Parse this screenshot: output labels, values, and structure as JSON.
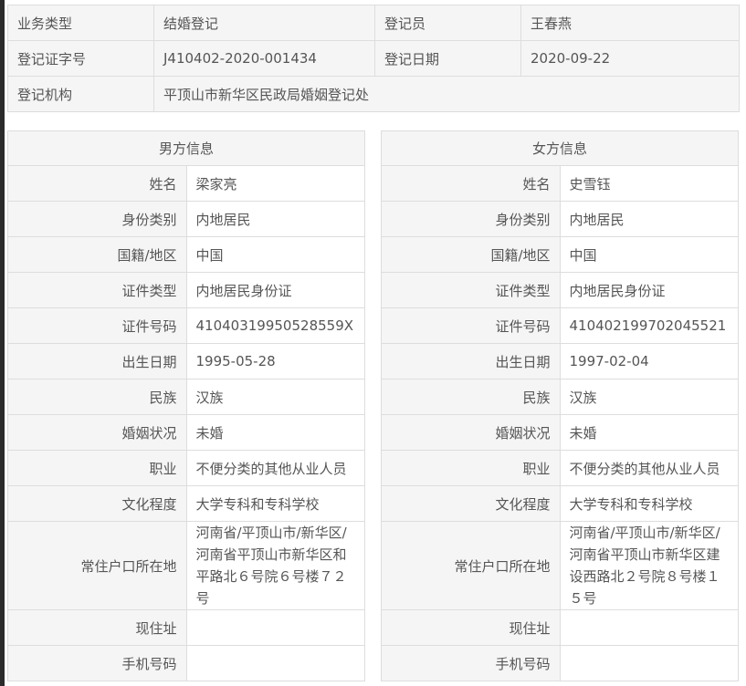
{
  "top": {
    "rows": [
      [
        {
          "label": "业务类型",
          "value": "结婚登记"
        },
        {
          "label": "登记员",
          "value": "王春燕"
        }
      ],
      [
        {
          "label": "登记证字号",
          "value": "J410402-2020-001434"
        },
        {
          "label": "登记日期",
          "value": "2020-09-22"
        }
      ]
    ],
    "org_label": "登记机构",
    "org_value": "平顶山市新华区民政局婚姻登记处"
  },
  "labels": [
    "姓名",
    "身份类别",
    "国籍/地区",
    "证件类型",
    "证件号码",
    "出生日期",
    "民族",
    "婚姻状况",
    "职业",
    "文化程度",
    "常住户口所在地",
    "现住址",
    "手机号码"
  ],
  "male": {
    "title": "男方信息",
    "values": [
      "梁家亮",
      "内地居民",
      "中国",
      "内地居民身份证",
      "41040319950528559X",
      "1995-05-28",
      "汉族",
      "未婚",
      "不便分类的其他从业人员",
      "大学专科和专科学校",
      "河南省/平顶山市/新华区/河南省平顶山市新华区和平路北６号院６号楼７２号",
      "",
      ""
    ]
  },
  "female": {
    "title": "女方信息",
    "values": [
      "史雪钰",
      "内地居民",
      "中国",
      "内地居民身份证",
      "410402199702045521",
      "1997-02-04",
      "汉族",
      "未婚",
      "不便分类的其他从业人员",
      "大学专科和专科学校",
      "河南省/平顶山市/新华区/河南省平顶山市新华区建设西路北２号院８号楼１５号",
      "",
      ""
    ]
  }
}
